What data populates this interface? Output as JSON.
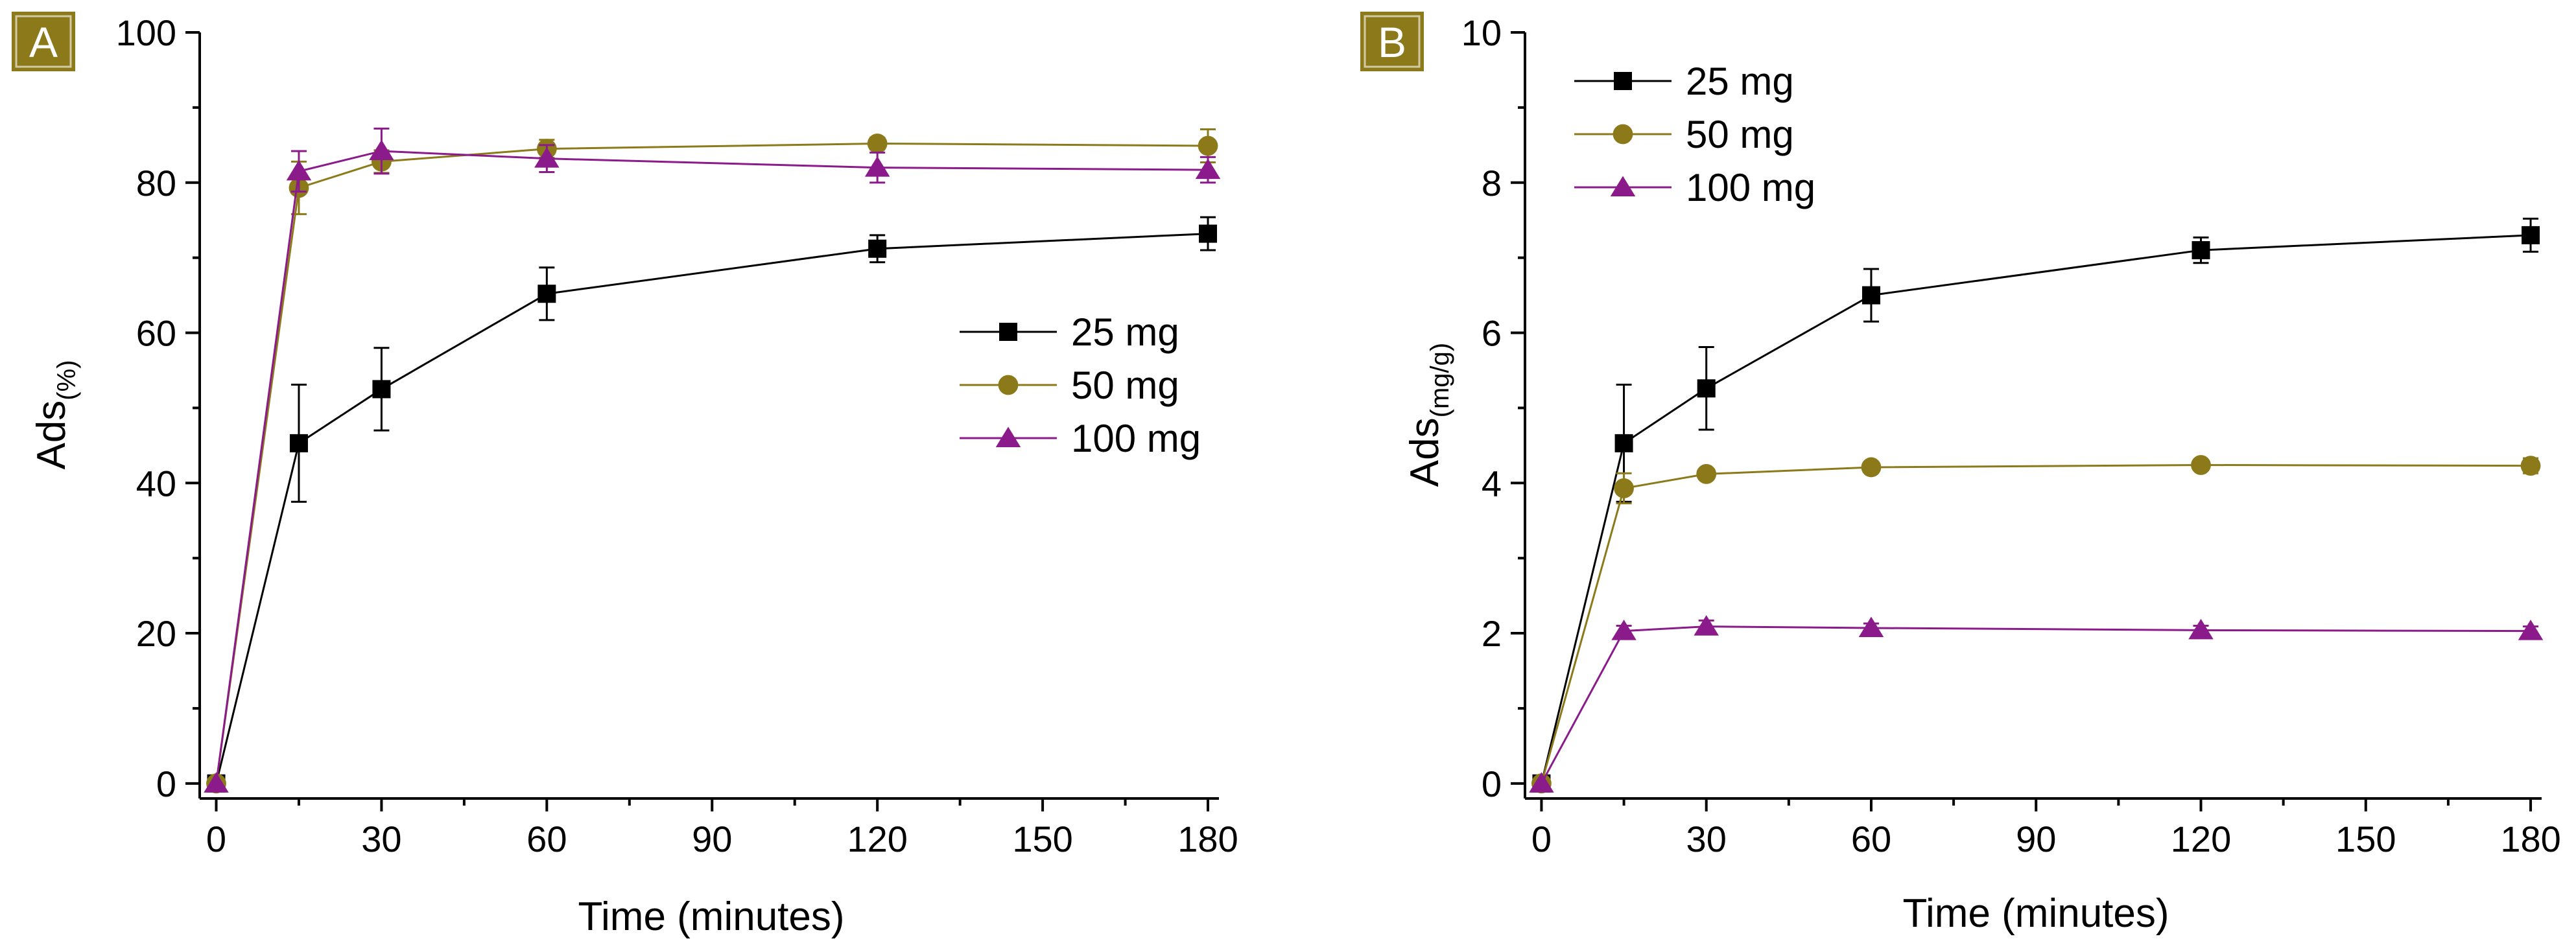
{
  "chart_data": [
    {
      "type": "line",
      "panel_label": "A",
      "title": "",
      "xlabel": "Time (minutes)",
      "ylabel": "Ads",
      "ylabel_sub": "(%)",
      "xlim": [
        -3,
        182
      ],
      "ylim": [
        -2,
        100
      ],
      "xticks": [
        0,
        30,
        60,
        90,
        120,
        150,
        180
      ],
      "yticks": [
        0,
        20,
        40,
        60,
        80,
        100
      ],
      "legend_position": "center-right",
      "x": [
        0,
        15,
        30,
        60,
        120,
        180
      ],
      "series": [
        {
          "name": "25 mg",
          "marker": "square",
          "color": "#000000",
          "values": [
            0,
            45.3,
            52.5,
            65.2,
            71.2,
            73.2
          ],
          "errors": [
            0,
            7.8,
            5.5,
            3.5,
            1.8,
            2.2
          ]
        },
        {
          "name": "50 mg",
          "marker": "circle",
          "color": "#8C7A1A",
          "values": [
            0,
            79.3,
            82.8,
            84.5,
            85.2,
            84.9
          ],
          "errors": [
            0,
            3.5,
            1.5,
            1.2,
            0.8,
            2.2
          ]
        },
        {
          "name": "100 mg",
          "marker": "triangle",
          "color": "#8B1A8B",
          "values": [
            0,
            81.5,
            84.2,
            83.2,
            82.0,
            81.7
          ],
          "errors": [
            0,
            2.7,
            3.0,
            1.8,
            2.0,
            1.7
          ]
        }
      ]
    },
    {
      "type": "line",
      "panel_label": "B",
      "title": "",
      "xlabel": "Time (minutes)",
      "ylabel": "Ads",
      "ylabel_sub": "(mg/g)",
      "xlim": [
        -3,
        182
      ],
      "ylim": [
        -0.2,
        10
      ],
      "xticks": [
        0,
        30,
        60,
        90,
        120,
        150,
        180
      ],
      "yticks": [
        0,
        2,
        4,
        6,
        8,
        10
      ],
      "legend_position": "top-left",
      "x": [
        0,
        15,
        30,
        60,
        120,
        180
      ],
      "series": [
        {
          "name": "25 mg",
          "marker": "square",
          "color": "#000000",
          "values": [
            0,
            4.53,
            5.26,
            6.5,
            7.1,
            7.3
          ],
          "errors": [
            0,
            0.78,
            0.55,
            0.35,
            0.17,
            0.22
          ]
        },
        {
          "name": "50 mg",
          "marker": "circle",
          "color": "#8C7A1A",
          "values": [
            0,
            3.93,
            4.12,
            4.21,
            4.24,
            4.23
          ],
          "errors": [
            0,
            0.2,
            0.06,
            0.05,
            0.05,
            0.1
          ]
        },
        {
          "name": "100 mg",
          "marker": "triangle",
          "color": "#8B1A8B",
          "values": [
            0,
            2.03,
            2.09,
            2.07,
            2.04,
            2.03
          ],
          "errors": [
            0,
            0.07,
            0.08,
            0.06,
            0.06,
            0.06
          ]
        }
      ]
    }
  ],
  "style": {
    "label_box_color": "#8C7A1A",
    "axis_color": "#000000"
  }
}
